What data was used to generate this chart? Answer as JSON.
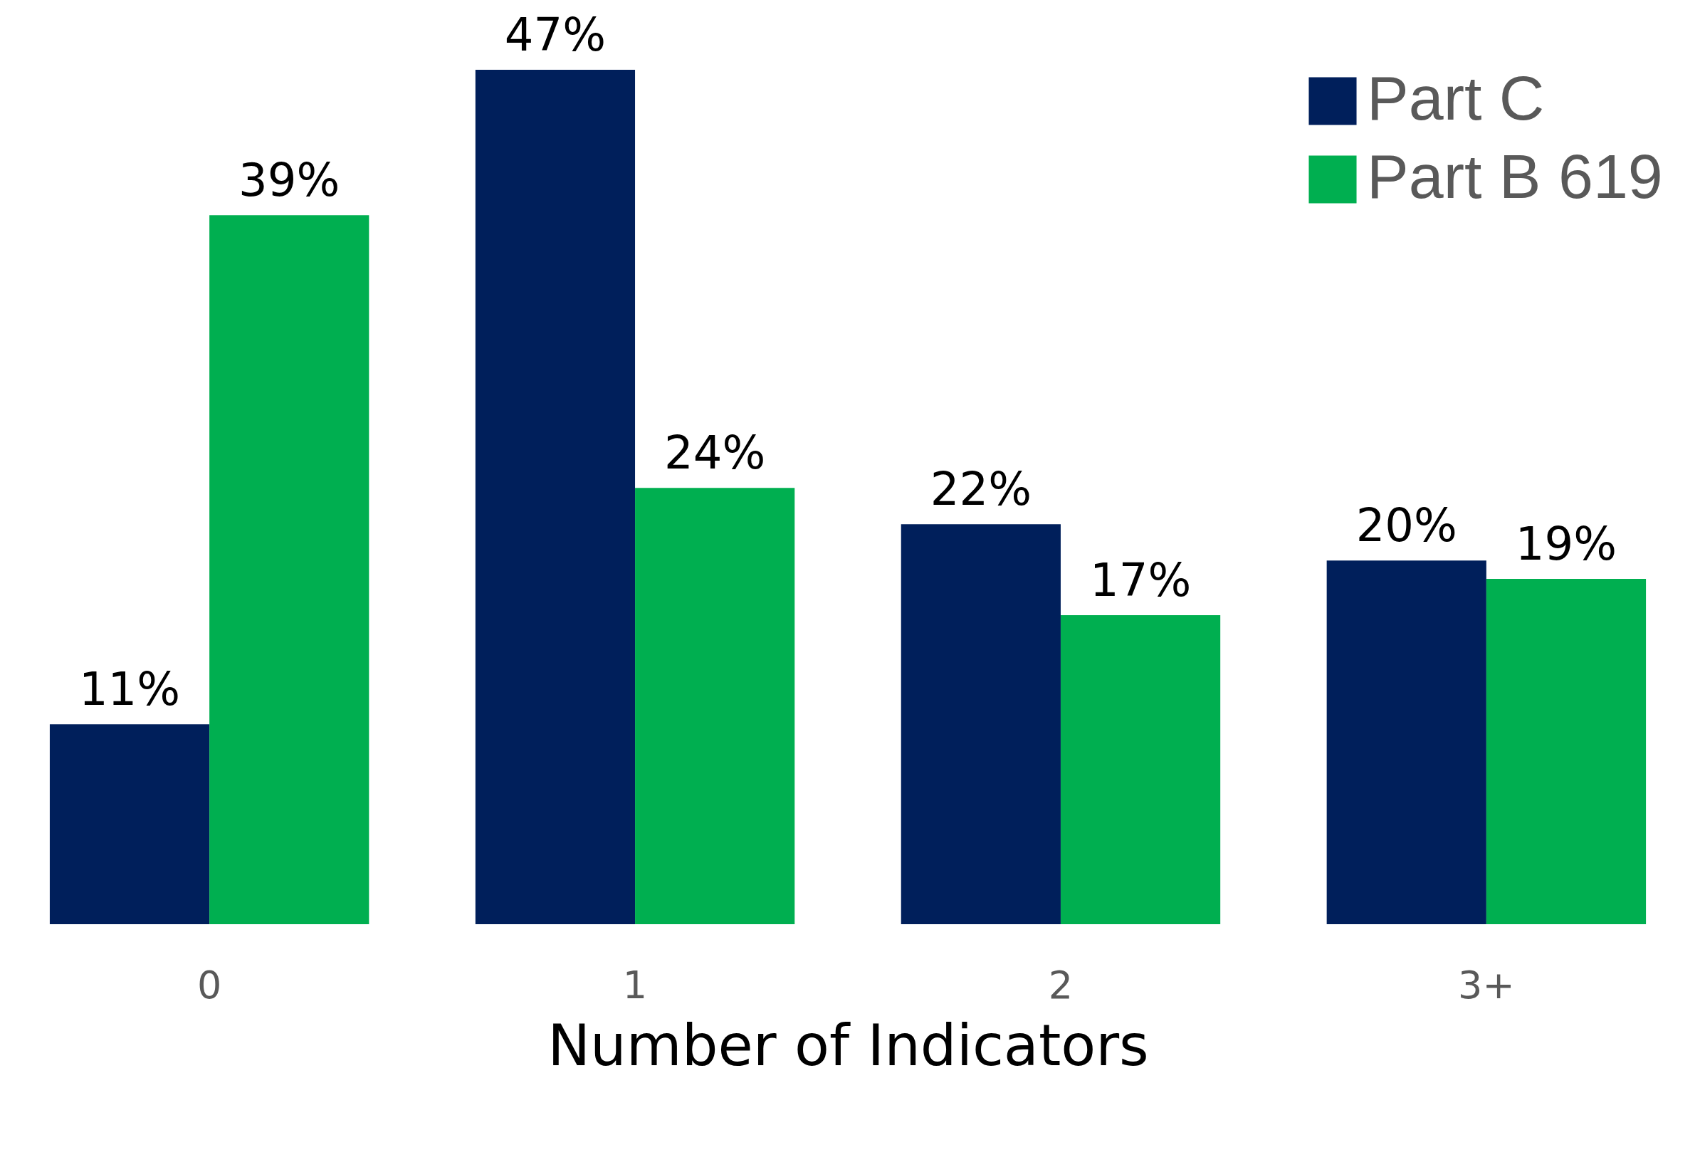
{
  "chart_data": {
    "type": "bar",
    "xlabel": "Number of Indicators",
    "categories": [
      "0",
      "1",
      "2",
      "3+"
    ],
    "series": [
      {
        "name": "Part C",
        "color": "#001f5b",
        "values": [
          11,
          47,
          22,
          20
        ],
        "value_labels": [
          "11%",
          "47%",
          "22%",
          "20%"
        ]
      },
      {
        "name": "Part B 619",
        "color": "#00af50",
        "values": [
          39,
          24,
          17,
          19
        ],
        "value_labels": [
          "39%",
          "24%",
          "17%",
          "19%"
        ]
      }
    ],
    "legend": "top right"
  }
}
